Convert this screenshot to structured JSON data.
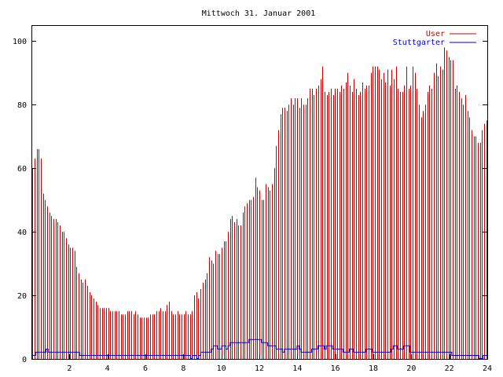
{
  "chart_data": {
    "type": "bar",
    "title": "Mittwoch 31. Januar 2001",
    "xlabel": "",
    "ylabel": "",
    "xlim": [
      0,
      24
    ],
    "ylim": [
      0,
      105
    ],
    "xticks": [
      2,
      4,
      6,
      8,
      10,
      12,
      14,
      16,
      18,
      20,
      22,
      24
    ],
    "yticks": [
      0,
      20,
      40,
      60,
      80,
      100
    ],
    "grid": false,
    "legend_position": "top-right",
    "step_hours": 0.0833,
    "series": [
      {
        "name": "User",
        "kind": "impulse",
        "color": "#cc0000",
        "values": [
          60,
          63,
          66,
          66,
          63,
          52,
          50,
          48,
          46,
          45,
          44,
          44,
          43,
          42,
          40,
          40,
          38,
          36,
          35,
          35,
          34,
          29,
          27,
          25,
          24,
          25,
          23,
          21,
          20,
          19,
          18,
          17,
          16,
          16,
          16,
          16,
          16,
          15,
          15,
          15,
          15,
          15,
          14,
          14,
          14,
          15,
          15,
          15,
          14,
          15,
          14,
          13,
          13,
          13,
          13,
          13,
          14,
          14,
          14,
          15,
          15,
          16,
          15,
          15,
          17,
          18,
          15,
          14,
          14,
          15,
          14,
          14,
          14,
          15,
          14,
          14,
          15,
          20,
          21,
          19,
          22,
          24,
          25,
          27,
          32,
          31,
          30,
          34,
          33,
          33,
          35,
          37,
          37,
          40,
          44,
          45,
          43,
          44,
          42,
          42,
          46,
          48,
          49,
          50,
          50,
          51,
          57,
          54,
          53,
          50,
          50,
          55,
          54,
          53,
          55,
          60,
          67,
          72,
          77,
          79,
          79,
          78,
          80,
          82,
          80,
          82,
          82,
          79,
          82,
          80,
          80,
          82,
          85,
          85,
          83,
          85,
          86,
          88,
          92,
          84,
          83,
          84,
          85,
          83,
          85,
          85,
          84,
          86,
          85,
          87,
          90,
          86,
          84,
          88,
          85,
          83,
          84,
          87,
          85,
          86,
          86,
          90,
          92,
          92,
          92,
          91,
          88,
          90,
          87,
          91,
          86,
          91,
          88,
          92,
          85,
          84,
          84,
          86,
          92,
          85,
          86,
          92,
          90,
          85,
          80,
          76,
          78,
          80,
          84,
          86,
          85,
          90,
          93,
          89,
          92,
          91,
          98,
          97,
          95,
          94,
          94,
          85,
          86,
          84,
          82,
          80,
          83,
          78,
          76,
          72,
          70,
          70,
          68,
          68,
          72,
          74,
          75
        ]
      },
      {
        "name": "Stuttgarter",
        "kind": "line",
        "color": "#0000cc",
        "values": [
          1,
          1,
          2,
          2,
          2,
          2,
          2,
          3,
          2,
          2,
          2,
          2,
          2,
          2,
          2,
          2,
          2,
          2,
          2,
          2,
          2,
          2,
          2,
          1,
          1,
          1,
          1,
          1,
          1,
          1,
          1,
          1,
          1,
          1,
          1,
          1,
          1,
          1,
          1,
          1,
          1,
          1,
          1,
          1,
          1,
          1,
          1,
          1,
          1,
          1,
          1,
          1,
          1,
          1,
          1,
          1,
          1,
          1,
          1,
          1,
          1,
          1,
          1,
          1,
          1,
          1,
          1,
          1,
          1,
          1,
          1,
          1,
          1,
          1,
          1,
          1,
          0,
          1,
          1,
          0,
          1,
          2,
          2,
          2,
          2,
          2,
          3,
          4,
          4,
          3,
          3,
          4,
          4,
          3,
          4,
          5,
          5,
          5,
          5,
          5,
          5,
          5,
          5,
          5,
          6,
          6,
          6,
          6,
          6,
          6,
          5,
          5,
          5,
          4,
          4,
          4,
          4,
          3,
          3,
          3,
          2,
          3,
          3,
          3,
          3,
          3,
          3,
          4,
          3,
          2,
          2,
          2,
          2,
          2,
          3,
          3,
          3,
          4,
          4,
          4,
          3,
          4,
          4,
          4,
          3,
          3,
          3,
          3,
          3,
          2,
          2,
          2,
          3,
          3,
          2,
          2,
          2,
          2,
          2,
          2,
          3,
          3,
          3,
          2,
          2,
          2,
          2,
          2,
          2,
          2,
          2,
          2,
          3,
          4,
          4,
          3,
          3,
          3,
          4,
          4,
          4,
          2,
          2,
          2,
          2,
          2,
          2,
          2,
          2,
          2,
          2,
          2,
          2,
          2,
          2,
          2,
          2,
          2,
          2,
          2,
          2,
          1,
          1,
          1,
          1,
          1,
          1,
          1,
          1,
          1,
          1,
          1,
          1,
          1,
          0,
          0,
          1,
          1
        ]
      }
    ]
  }
}
